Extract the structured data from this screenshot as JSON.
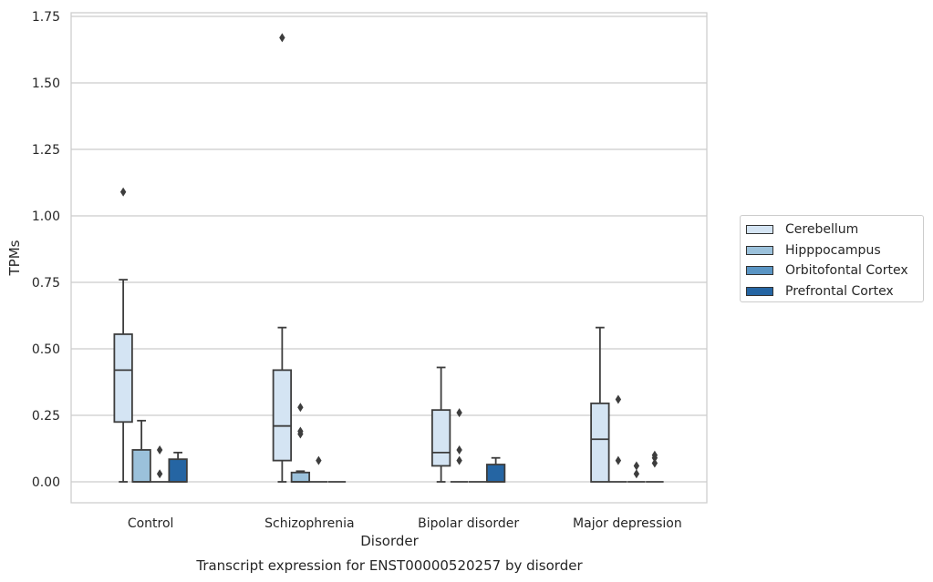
{
  "chart_data": {
    "type": "box",
    "caption": "Transcript expression for ENST00000520257 by disorder",
    "xlabel": "Disorder",
    "ylabel": "TPMs",
    "ylim": [
      -0.08,
      1.76
    ],
    "yticks": [
      "0.00",
      "0.25",
      "0.50",
      "0.75",
      "1.00",
      "1.25",
      "1.50",
      "1.75"
    ],
    "ytick_values": [
      0,
      0.25,
      0.5,
      0.75,
      1.0,
      1.25,
      1.5,
      1.75
    ],
    "grid": true,
    "legend_position": "outside-right",
    "categories": [
      "Control",
      "Schizophrenia",
      "Bipolar disorder",
      "Major depression"
    ],
    "series": [
      {
        "name": "Cerebellum",
        "color": "#d4e4f3",
        "boxes": [
          {
            "q1": 0.225,
            "median": 0.42,
            "q3": 0.555,
            "whislo": 0.0,
            "whishi": 0.76,
            "fliers": [
              1.09
            ]
          },
          {
            "q1": 0.08,
            "median": 0.21,
            "q3": 0.42,
            "whislo": 0.0,
            "whishi": 0.58,
            "fliers": [
              1.67
            ]
          },
          {
            "q1": 0.06,
            "median": 0.11,
            "q3": 0.27,
            "whislo": 0.0,
            "whishi": 0.43,
            "fliers": []
          },
          {
            "q1": 0.0,
            "median": 0.16,
            "q3": 0.295,
            "whislo": 0.0,
            "whishi": 0.58,
            "fliers": []
          }
        ]
      },
      {
        "name": "Hipppocampus",
        "color": "#9bc1db",
        "boxes": [
          {
            "q1": 0.0,
            "median": 0.0,
            "q3": 0.12,
            "whislo": 0.0,
            "whishi": 0.23,
            "fliers": []
          },
          {
            "q1": 0.0,
            "median": 0.0,
            "q3": 0.035,
            "whislo": 0.0,
            "whishi": 0.04,
            "fliers": [
              0.18,
              0.19,
              0.28
            ]
          },
          {
            "q1": 0.0,
            "median": 0.0,
            "q3": 0.0,
            "whislo": 0.0,
            "whishi": 0.0,
            "fliers": [
              0.08,
              0.12,
              0.26
            ]
          },
          {
            "q1": 0.0,
            "median": 0.0,
            "q3": 0.0,
            "whislo": 0.0,
            "whishi": 0.0,
            "fliers": [
              0.08,
              0.31
            ]
          }
        ]
      },
      {
        "name": "Orbitofontal Cortex",
        "color": "#5a95c4",
        "boxes": [
          {
            "q1": 0.0,
            "median": 0.0,
            "q3": 0.0,
            "whislo": 0.0,
            "whishi": 0.0,
            "fliers": [
              0.03,
              0.12
            ]
          },
          {
            "q1": 0.0,
            "median": 0.0,
            "q3": 0.0,
            "whislo": 0.0,
            "whishi": 0.0,
            "fliers": [
              0.08
            ]
          },
          {
            "q1": 0.0,
            "median": 0.0,
            "q3": 0.0,
            "whislo": 0.0,
            "whishi": 0.0,
            "fliers": []
          },
          {
            "q1": 0.0,
            "median": 0.0,
            "q3": 0.0,
            "whislo": 0.0,
            "whishi": 0.0,
            "fliers": [
              0.03,
              0.06
            ]
          }
        ]
      },
      {
        "name": "Prefrontal Cortex",
        "color": "#2565a3",
        "boxes": [
          {
            "q1": 0.0,
            "median": 0.0,
            "q3": 0.085,
            "whislo": 0.0,
            "whishi": 0.11,
            "fliers": []
          },
          {
            "q1": 0.0,
            "median": 0.0,
            "q3": 0.0,
            "whislo": 0.0,
            "whishi": 0.0,
            "fliers": []
          },
          {
            "q1": 0.0,
            "median": 0.0,
            "q3": 0.065,
            "whislo": 0.0,
            "whishi": 0.09,
            "fliers": []
          },
          {
            "q1": 0.0,
            "median": 0.0,
            "q3": 0.0,
            "whislo": 0.0,
            "whishi": 0.0,
            "fliers": [
              0.07,
              0.09,
              0.1
            ]
          }
        ]
      }
    ]
  }
}
